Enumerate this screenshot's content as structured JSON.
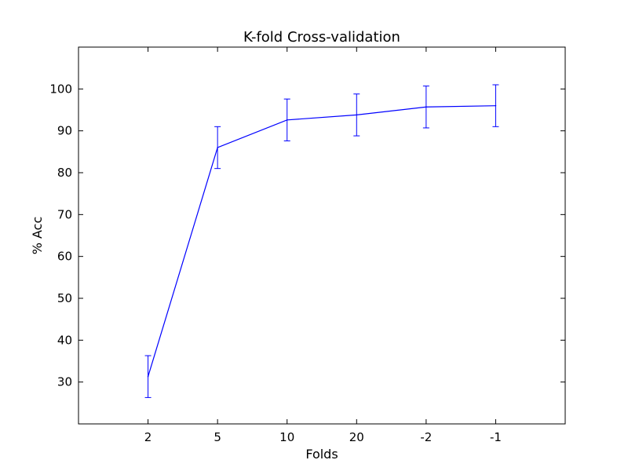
{
  "chart_data": {
    "type": "line",
    "title": "K-fold Cross-validation",
    "xlabel": "Folds",
    "ylabel": "% Acc",
    "categories": [
      "2",
      "5",
      "10",
      "20",
      "-2",
      "-1"
    ],
    "series": [
      {
        "values": [
          31.3,
          86.0,
          92.6,
          93.8,
          95.7,
          96.0
        ],
        "errors": [
          5.0,
          5.0,
          5.0,
          5.0,
          5.0,
          5.0
        ],
        "color": "#0000ff"
      }
    ],
    "ylim": [
      20,
      110
    ],
    "yticks": [
      30,
      40,
      50,
      60,
      70,
      80,
      90,
      100
    ],
    "grid": false,
    "legend": "none"
  }
}
